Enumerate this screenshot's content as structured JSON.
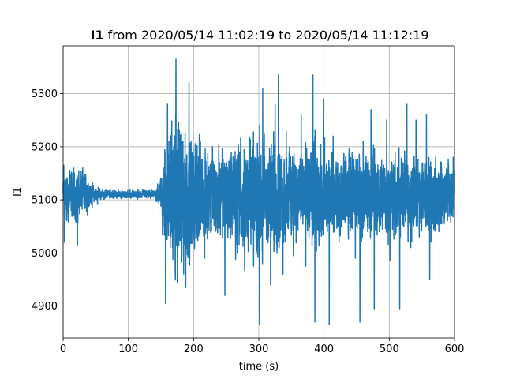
{
  "chart_data": {
    "type": "line",
    "title_bold": "I1",
    "title_rest": " from 2020/05/14 11:02:19 to 2020/05/14 11:12:19",
    "xlabel": "time (s)",
    "ylabel": "I1",
    "xlim": [
      0,
      600
    ],
    "ylim": [
      4840,
      5390
    ],
    "xticks": [
      0,
      100,
      200,
      300,
      400,
      500,
      600
    ],
    "yticks": [
      4900,
      5000,
      5100,
      5200,
      5300
    ],
    "grid": true,
    "series": [
      {
        "color": "#1f77b4",
        "baseline": 5110,
        "envelope": [
          [
            0,
            40
          ],
          [
            5,
            55
          ],
          [
            25,
            50
          ],
          [
            45,
            20
          ],
          [
            60,
            8
          ],
          [
            140,
            8
          ],
          [
            150,
            35
          ],
          [
            158,
            110
          ],
          [
            175,
            150
          ],
          [
            200,
            110
          ],
          [
            230,
            80
          ],
          [
            260,
            95
          ],
          [
            300,
            120
          ],
          [
            330,
            110
          ],
          [
            360,
            70
          ],
          [
            380,
            110
          ],
          [
            420,
            70
          ],
          [
            460,
            85
          ],
          [
            500,
            80
          ],
          [
            540,
            75
          ],
          [
            580,
            70
          ],
          [
            600,
            60
          ]
        ],
        "extremes": [
          [
            1,
            5165
          ],
          [
            2,
            5020
          ],
          [
            15,
            5150
          ],
          [
            20,
            5060
          ],
          [
            22,
            5015
          ],
          [
            30,
            5160
          ],
          [
            157,
            4905
          ],
          [
            160,
            5280
          ],
          [
            166,
            5040
          ],
          [
            173,
            5365
          ],
          [
            176,
            5010
          ],
          [
            188,
            4935
          ],
          [
            193,
            5320
          ],
          [
            197,
            5050
          ],
          [
            208,
            5160
          ],
          [
            217,
            4990
          ],
          [
            229,
            5200
          ],
          [
            248,
            4920
          ],
          [
            258,
            5170
          ],
          [
            267,
            5000
          ],
          [
            281,
            5150
          ],
          [
            292,
            4975
          ],
          [
            301,
            4865
          ],
          [
            303,
            5050
          ],
          [
            306,
            5310
          ],
          [
            318,
            4940
          ],
          [
            325,
            5280
          ],
          [
            330,
            5335
          ],
          [
            337,
            4960
          ],
          [
            342,
            5230
          ],
          [
            353,
            4995
          ],
          [
            365,
            5260
          ],
          [
            372,
            4975
          ],
          [
            383,
            5335
          ],
          [
            386,
            4870
          ],
          [
            390,
            5070
          ],
          [
            399,
            5290
          ],
          [
            405,
            5040
          ],
          [
            408,
            4865
          ],
          [
            414,
            5220
          ],
          [
            423,
            5020
          ],
          [
            443,
            5190
          ],
          [
            448,
            4990
          ],
          [
            455,
            4870
          ],
          [
            460,
            5210
          ],
          [
            467,
            5040
          ],
          [
            472,
            5270
          ],
          [
            477,
            4895
          ],
          [
            488,
            5160
          ],
          [
            496,
            5250
          ],
          [
            501,
            4985
          ],
          [
            509,
            5190
          ],
          [
            516,
            4895
          ],
          [
            527,
            5280
          ],
          [
            533,
            5010
          ],
          [
            541,
            5250
          ],
          [
            546,
            5030
          ],
          [
            557,
            5260
          ],
          [
            562,
            4950
          ],
          [
            571,
            5180
          ],
          [
            598,
            5180
          ]
        ]
      }
    ]
  }
}
